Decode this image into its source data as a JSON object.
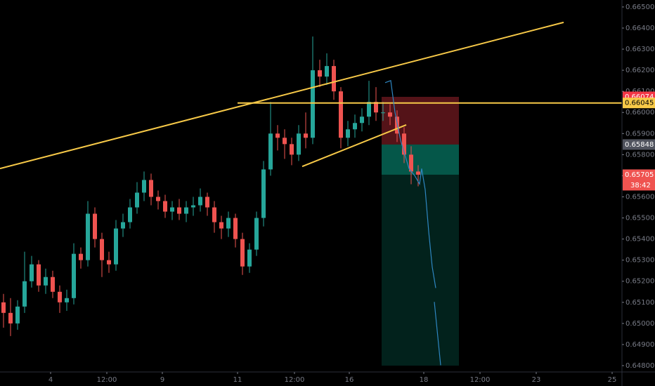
{
  "chart_data": {
    "type": "candlestick",
    "background": "#000000",
    "up_color": "#26a69a",
    "down_color": "#ef5350",
    "open": [
      0.651,
      0.6505,
      0.65,
      0.6508,
      0.652,
      0.6528,
      0.6518,
      0.6522,
      0.6515,
      0.651,
      0.6512,
      0.6533,
      0.653,
      0.6552,
      0.654,
      0.653,
      0.6528,
      0.6545,
      0.6548,
      0.6555,
      0.6562,
      0.6568,
      0.656,
      0.6558,
      0.6553,
      0.6555,
      0.6552,
      0.6555,
      0.6556,
      0.656,
      0.6555,
      0.6548,
      0.6545,
      0.655,
      0.654,
      0.6527,
      0.6535,
      0.655,
      0.6573,
      0.659,
      0.6588,
      0.6585,
      0.658,
      0.659,
      0.6588,
      0.662,
      0.6617,
      0.6622,
      0.661,
      0.6588,
      0.6592,
      0.6595,
      0.6598,
      0.6605,
      0.66,
      0.66,
      0.6598,
      0.659,
      0.658,
      0.6572
    ],
    "high": [
      0.6514,
      0.6512,
      0.6511,
      0.6534,
      0.6532,
      0.653,
      0.6526,
      0.6525,
      0.6518,
      0.6516,
      0.6538,
      0.6536,
      0.6558,
      0.6555,
      0.6543,
      0.6534,
      0.6549,
      0.6552,
      0.6559,
      0.6567,
      0.6572,
      0.6571,
      0.6563,
      0.6561,
      0.6558,
      0.6559,
      0.6558,
      0.656,
      0.6564,
      0.6562,
      0.6558,
      0.6551,
      0.6553,
      0.6552,
      0.6543,
      0.6538,
      0.6553,
      0.6577,
      0.6605,
      0.6594,
      0.6592,
      0.6588,
      0.6594,
      0.66,
      0.6636,
      0.6625,
      0.6628,
      0.6625,
      0.6612,
      0.6596,
      0.6599,
      0.6602,
      0.6615,
      0.6612,
      0.6605,
      0.6604,
      0.6601,
      0.6593,
      0.6584,
      0.6575
    ],
    "low": [
      0.6498,
      0.6494,
      0.6497,
      0.6505,
      0.6517,
      0.6515,
      0.6514,
      0.6512,
      0.6505,
      0.6506,
      0.6509,
      0.6526,
      0.6527,
      0.6536,
      0.6522,
      0.6524,
      0.6525,
      0.6541,
      0.6545,
      0.6552,
      0.6558,
      0.6556,
      0.6554,
      0.655,
      0.6549,
      0.6549,
      0.6548,
      0.6551,
      0.6553,
      0.6551,
      0.6543,
      0.654,
      0.6541,
      0.6536,
      0.6523,
      0.6524,
      0.6532,
      0.6546,
      0.657,
      0.6582,
      0.6578,
      0.6575,
      0.6577,
      0.6583,
      0.6585,
      0.6612,
      0.6613,
      0.6606,
      0.6583,
      0.6584,
      0.6588,
      0.6591,
      0.6594,
      0.6596,
      0.6596,
      0.6594,
      0.6586,
      0.6576,
      0.6566,
      0.6565
    ],
    "close": [
      0.6505,
      0.65,
      0.6508,
      0.652,
      0.6528,
      0.6518,
      0.6522,
      0.6515,
      0.651,
      0.6512,
      0.6533,
      0.653,
      0.6552,
      0.654,
      0.653,
      0.6528,
      0.6545,
      0.6548,
      0.6555,
      0.6562,
      0.6568,
      0.656,
      0.6558,
      0.6553,
      0.6555,
      0.6552,
      0.6555,
      0.6556,
      0.656,
      0.6555,
      0.6548,
      0.6545,
      0.655,
      0.654,
      0.6527,
      0.6535,
      0.655,
      0.6573,
      0.659,
      0.6588,
      0.6585,
      0.658,
      0.659,
      0.6588,
      0.662,
      0.6617,
      0.6622,
      0.661,
      0.6588,
      0.6592,
      0.6595,
      0.6598,
      0.6605,
      0.66,
      0.66,
      0.6598,
      0.659,
      0.658,
      0.6572,
      0.65705
    ],
    "xlim": [
      -0.5,
      88
    ],
    "ylim": [
      0.6477,
      0.66533
    ],
    "xticks": [
      {
        "value": 6.7,
        "label": "4"
      },
      {
        "value": 14.7,
        "label": "12:00"
      },
      {
        "value": 22.6,
        "label": "9"
      },
      {
        "value": 33.3,
        "label": "11"
      },
      {
        "value": 41.4,
        "label": "12:00"
      },
      {
        "value": 49.2,
        "label": "16"
      },
      {
        "value": 59.8,
        "label": "18"
      },
      {
        "value": 67.8,
        "label": "12:00"
      },
      {
        "value": 75.8,
        "label": "23"
      },
      {
        "value": 86.6,
        "label": "25"
      }
    ],
    "yticks": [
      {
        "value": 0.648,
        "label": "0.64800"
      },
      {
        "value": 0.649,
        "label": "0.64900"
      },
      {
        "value": 0.65,
        "label": "0.65000"
      },
      {
        "value": 0.651,
        "label": "0.65100"
      },
      {
        "value": 0.652,
        "label": "0.65200"
      },
      {
        "value": 0.653,
        "label": "0.65300"
      },
      {
        "value": 0.654,
        "label": "0.65400"
      },
      {
        "value": 0.655,
        "label": "0.65500"
      },
      {
        "value": 0.656,
        "label": "0.65600"
      },
      {
        "value": 0.657,
        "label": "0.65700"
      },
      {
        "value": 0.658,
        "label": "0.65800"
      },
      {
        "value": 0.659,
        "label": "0.65900"
      },
      {
        "value": 0.66,
        "label": "0.66000"
      },
      {
        "value": 0.661,
        "label": "0.66100"
      },
      {
        "value": 0.662,
        "label": "0.66200"
      },
      {
        "value": 0.663,
        "label": "0.66300"
      },
      {
        "value": 0.664,
        "label": "0.66400"
      },
      {
        "value": 0.665,
        "label": "0.66500"
      }
    ],
    "grid": false,
    "trend_lines": [
      {
        "color": "#f7c948",
        "x": [
          -0.5,
          79.7
        ],
        "y": [
          0.65734,
          0.66427
        ]
      },
      {
        "color": "#f7c948",
        "x": [
          42.5,
          57.3
        ],
        "y": [
          0.65744,
          0.65941
        ]
      }
    ],
    "horizontal_line": {
      "color": "#f7c948",
      "x_start": 33.3,
      "value": 0.66045
    },
    "position": {
      "x": [
        53.8,
        64.8
      ],
      "stop": 0.66074,
      "entry": 0.65848,
      "target": 0.648
    },
    "projection": {
      "color": "#2e86c1",
      "x": [
        54.3,
        55.1,
        55.7,
        56.5,
        57.7,
        58.5,
        59.2,
        59.5,
        60,
        60.5,
        61,
        61.5,
        null,
        61.3,
        61.7,
        62.2
      ],
      "y": [
        0.66141,
        0.66151,
        0.66001,
        0.65868,
        0.65734,
        0.65701,
        0.65661,
        0.65734,
        0.65634,
        0.65435,
        0.65268,
        0.65168,
        null,
        0.65102,
        0.64968,
        0.64802
      ]
    },
    "price_labels": [
      {
        "value": 0.66074,
        "label": "0.66074",
        "color": "#f23645",
        "text_color": "#ffffff"
      },
      {
        "value": 0.66045,
        "label": "0.66045",
        "color": "#f7c948",
        "text_color": "#000000"
      },
      {
        "value": 0.65848,
        "label": "0.65848",
        "color": "#50535e",
        "text_color": "#ffffff"
      },
      {
        "value": 0.65705,
        "label": "0.65705",
        "color": "#ef5350",
        "text_color": "#ffffff",
        "countdown": "38:42"
      }
    ]
  }
}
